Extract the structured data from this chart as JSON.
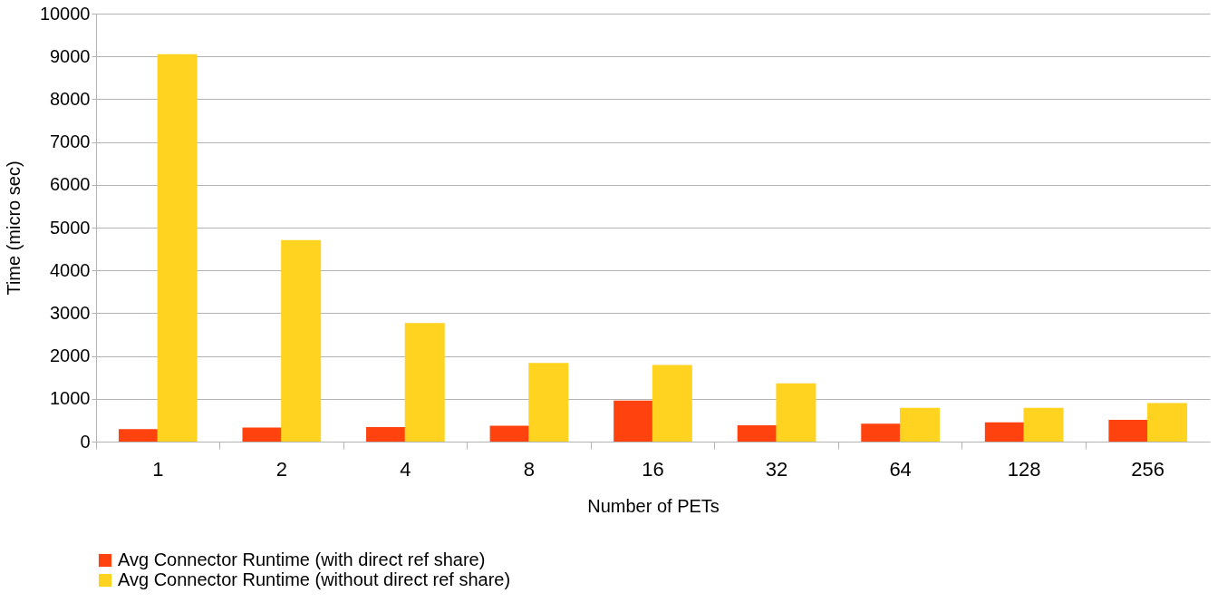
{
  "chart_data": {
    "type": "bar",
    "xlabel": "Number of PETs",
    "ylabel": "Time (micro sec)",
    "categories": [
      "1",
      "2",
      "4",
      "8",
      "16",
      "32",
      "64",
      "128",
      "256"
    ],
    "series": [
      {
        "name": "Avg Connector Runtime (with direct ref share)",
        "color": "#ff420e",
        "values": [
          290,
          330,
          340,
          370,
          960,
          380,
          420,
          450,
          510
        ]
      },
      {
        "name": "Avg Connector Runtime (without direct ref share)",
        "color": "#ffd320",
        "values": [
          9050,
          4710,
          2770,
          1840,
          1790,
          1360,
          790,
          790,
          900
        ]
      }
    ],
    "ylim": [
      0,
      10000
    ],
    "yticks": [
      0,
      1000,
      2000,
      3000,
      4000,
      5000,
      6000,
      7000,
      8000,
      9000,
      10000
    ],
    "grid": "y",
    "legend": "bottom"
  }
}
